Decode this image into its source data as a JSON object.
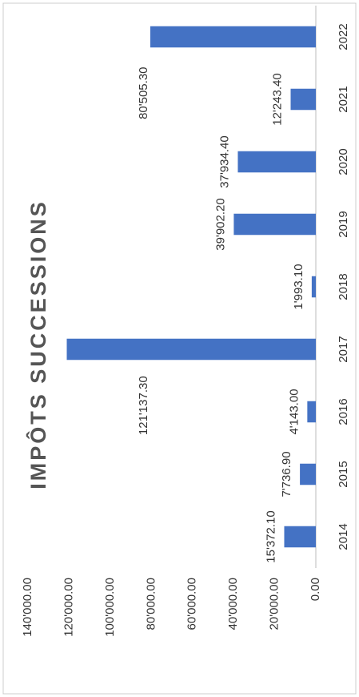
{
  "chart_data": {
    "type": "bar",
    "title": "IMPÔTS SUCCESSIONS",
    "categories": [
      "2014",
      "2015",
      "2016",
      "2017",
      "2018",
      "2019",
      "2020",
      "2021",
      "2022"
    ],
    "values": [
      15372.1,
      7736.9,
      4143,
      121137.3,
      1993.1,
      39902.2,
      37934.4,
      12243.4,
      80505.3
    ],
    "value_labels": [
      "15'372.10",
      "7'736.90",
      "4'143.00",
      "121'137.30",
      "1'993.10",
      "39'902.20",
      "37'934.40",
      "12'243.40",
      "80'505.30"
    ],
    "color": "#4472c4",
    "ylim": [
      0,
      140000
    ],
    "yticks": [
      {
        "value": 0,
        "label": "0.00"
      },
      {
        "value": 20000,
        "label": "20'000.00"
      },
      {
        "value": 40000,
        "label": "40'000.00"
      },
      {
        "value": 60000,
        "label": "60'000.00"
      },
      {
        "value": 80000,
        "label": "80'000.00"
      },
      {
        "value": 100000,
        "label": "100'000.00"
      },
      {
        "value": 120000,
        "label": "120'000.00"
      },
      {
        "value": 140000,
        "label": "140'000.00"
      }
    ],
    "grid": false
  }
}
